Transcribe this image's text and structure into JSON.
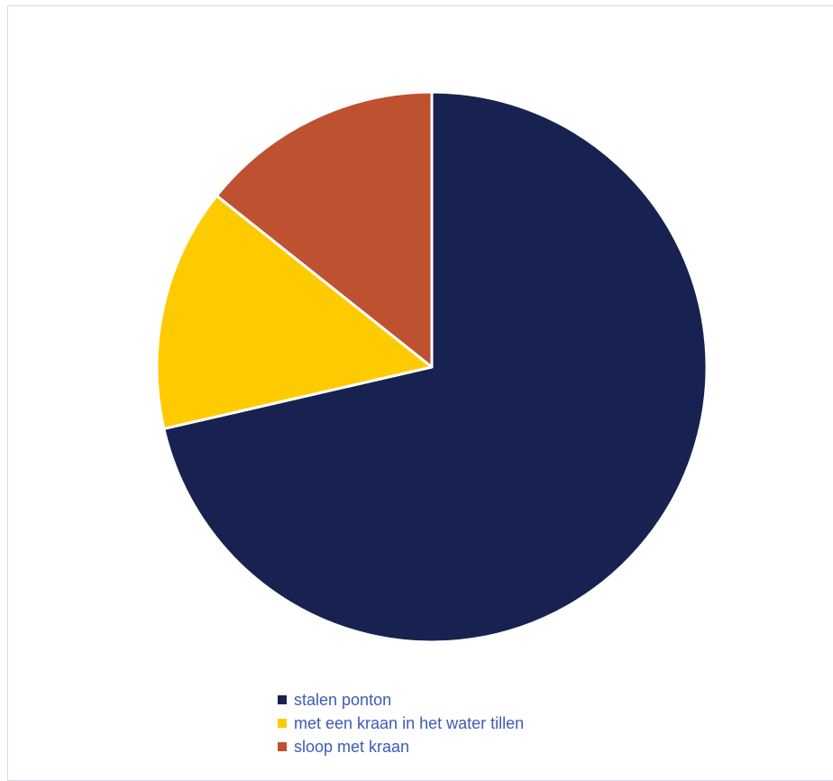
{
  "chart_data": {
    "type": "pie",
    "title": "",
    "categories": [
      "stalen ponton",
      "met een kraan in het water tillen",
      "sloop met kraan"
    ],
    "values": [
      71.4,
      14.3,
      14.3
    ],
    "colors": [
      "#172251",
      "#fecb00",
      "#be5230"
    ],
    "start_angle_deg": 0,
    "direction": "clockwise",
    "legend": {
      "placement": "bottom",
      "items": [
        {
          "label": "stalen ponton",
          "color": "#172251"
        },
        {
          "label": "met een kraan in het water tillen",
          "color": "#fecb00"
        },
        {
          "label": "sloop met kraan",
          "color": "#be5230"
        }
      ]
    }
  }
}
